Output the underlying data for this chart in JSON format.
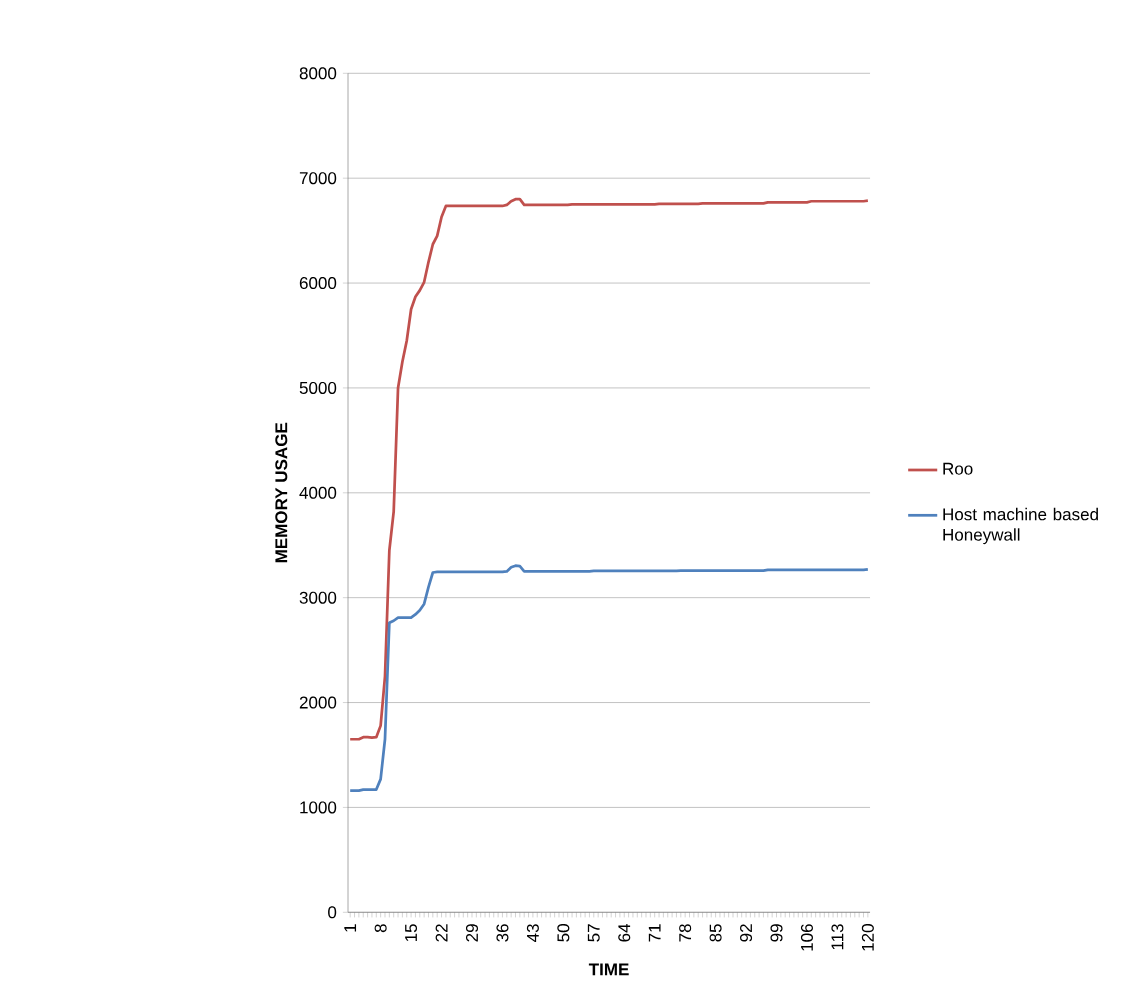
{
  "chart_data": {
    "type": "line",
    "xlabel": "TIME",
    "ylabel": "MEMORY USAGE",
    "categories": [
      "1",
      null,
      null,
      null,
      null,
      null,
      null,
      "8",
      null,
      null,
      null,
      null,
      null,
      null,
      "15",
      null,
      null,
      null,
      null,
      null,
      null,
      "22",
      null,
      null,
      null,
      null,
      null,
      null,
      "29",
      null,
      null,
      null,
      null,
      null,
      null,
      "36",
      null,
      null,
      null,
      null,
      null,
      null,
      "43",
      null,
      null,
      null,
      null,
      null,
      null,
      "50",
      null,
      null,
      null,
      null,
      null,
      null,
      "57",
      null,
      null,
      null,
      null,
      null,
      null,
      "64",
      null,
      null,
      null,
      null,
      null,
      null,
      "71",
      null,
      null,
      null,
      null,
      null,
      null,
      "78",
      null,
      null,
      null,
      null,
      null,
      null,
      "85",
      null,
      null,
      null,
      null,
      null,
      null,
      "92",
      null,
      null,
      null,
      null,
      null,
      null,
      "99",
      null,
      null,
      null,
      null,
      null,
      null,
      "106",
      null,
      null,
      null,
      null,
      null,
      null,
      "113",
      null,
      null,
      null,
      null,
      null,
      null,
      "120"
    ],
    "series": [
      {
        "name": "Roo",
        "color": "#c0504d",
        "values": [
          1650,
          1650,
          1650,
          1670,
          1670,
          1665,
          1670,
          1780,
          2250,
          3450,
          3820,
          5000,
          5250,
          5450,
          5750,
          5870,
          5930,
          6010,
          6200,
          6370,
          6450,
          6630,
          6735,
          6735,
          6735,
          6735,
          6735,
          6735,
          6735,
          6735,
          6735,
          6735,
          6735,
          6735,
          6735,
          6735,
          6745,
          6780,
          6800,
          6800,
          6745,
          6745,
          6745,
          6745,
          6745,
          6745,
          6745,
          6745,
          6745,
          6745,
          6745,
          6750,
          6750,
          6750,
          6750,
          6750,
          6750,
          6750,
          6750,
          6750,
          6750,
          6750,
          6750,
          6750,
          6750,
          6750,
          6750,
          6750,
          6750,
          6750,
          6750,
          6755,
          6755,
          6755,
          6755,
          6755,
          6755,
          6755,
          6755,
          6755,
          6755,
          6760,
          6760,
          6760,
          6760,
          6760,
          6760,
          6760,
          6760,
          6760,
          6760,
          6760,
          6760,
          6760,
          6760,
          6760,
          6770,
          6770,
          6770,
          6770,
          6770,
          6770,
          6770,
          6770,
          6770,
          6770,
          6780,
          6780,
          6780,
          6780,
          6780,
          6780,
          6780,
          6780,
          6780,
          6780,
          6780,
          6780,
          6780,
          6785
        ]
      },
      {
        "name": "Host machine based Honeywall",
        "color": "#4f81bd",
        "values": [
          1160,
          1160,
          1160,
          1170,
          1170,
          1170,
          1170,
          1270,
          1650,
          2760,
          2780,
          2810,
          2810,
          2810,
          2810,
          2840,
          2880,
          2940,
          3100,
          3240,
          3245,
          3245,
          3245,
          3245,
          3245,
          3245,
          3245,
          3245,
          3245,
          3245,
          3245,
          3245,
          3245,
          3245,
          3245,
          3245,
          3250,
          3290,
          3305,
          3300,
          3250,
          3250,
          3250,
          3250,
          3250,
          3250,
          3250,
          3250,
          3250,
          3250,
          3250,
          3250,
          3250,
          3250,
          3250,
          3250,
          3255,
          3255,
          3255,
          3255,
          3255,
          3255,
          3255,
          3255,
          3255,
          3255,
          3255,
          3255,
          3255,
          3255,
          3255,
          3255,
          3255,
          3255,
          3255,
          3255,
          3258,
          3258,
          3258,
          3258,
          3258,
          3258,
          3258,
          3258,
          3258,
          3258,
          3258,
          3258,
          3258,
          3258,
          3258,
          3258,
          3258,
          3258,
          3258,
          3258,
          3265,
          3265,
          3265,
          3265,
          3265,
          3265,
          3265,
          3265,
          3265,
          3265,
          3265,
          3265,
          3265,
          3265,
          3265,
          3265,
          3265,
          3265,
          3265,
          3265,
          3265,
          3265,
          3265,
          3270
        ]
      }
    ],
    "ylim": [
      0,
      8000
    ],
    "yticks": [
      0,
      1000,
      2000,
      3000,
      4000,
      5000,
      6000,
      7000,
      8000
    ],
    "grid": "y",
    "legend": "right"
  }
}
